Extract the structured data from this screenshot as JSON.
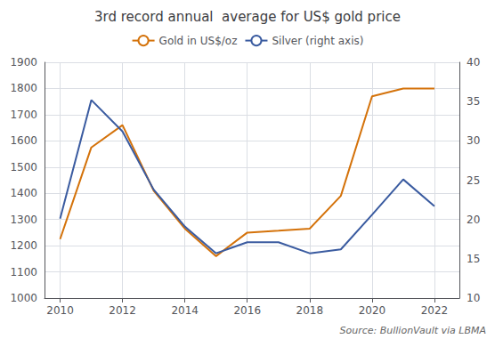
{
  "chart_data": {
    "type": "line",
    "title": "3rd record annual  average for US$ gold price",
    "x": [
      2010,
      2011,
      2012,
      2013,
      2014,
      2015,
      2016,
      2017,
      2018,
      2019,
      2020,
      2021,
      2022
    ],
    "series": [
      {
        "name": "Gold in US$/oz",
        "color": "#D4720A",
        "values": [
          1225,
          1575,
          1660,
          1410,
          1265,
          1160,
          1250,
          1257,
          1265,
          1390,
          1770,
          1800,
          1800
        ]
      },
      {
        "name": "Silver (right axis)",
        "color": "#3A5BA0",
        "axis": "y2",
        "values": [
          20.1,
          35.2,
          31.2,
          23.8,
          19.1,
          15.7,
          17.1,
          17.1,
          15.7,
          16.2,
          20.6,
          25.1,
          21.7
        ]
      }
    ],
    "xlim": [
      2009.5,
      2022.8
    ],
    "xticks": [
      2010,
      2012,
      2014,
      2016,
      2018,
      2020,
      2022
    ],
    "ylim": [
      1000,
      1900
    ],
    "yticks": [
      1000,
      1100,
      1200,
      1300,
      1400,
      1500,
      1600,
      1700,
      1800,
      1900
    ],
    "y2lim": [
      10,
      40
    ],
    "y2ticks": [
      10,
      15,
      20,
      25,
      30,
      35,
      40
    ],
    "grid": true,
    "legend": "top",
    "annotations": [
      "Source: BullionVault via LBMA"
    ]
  }
}
